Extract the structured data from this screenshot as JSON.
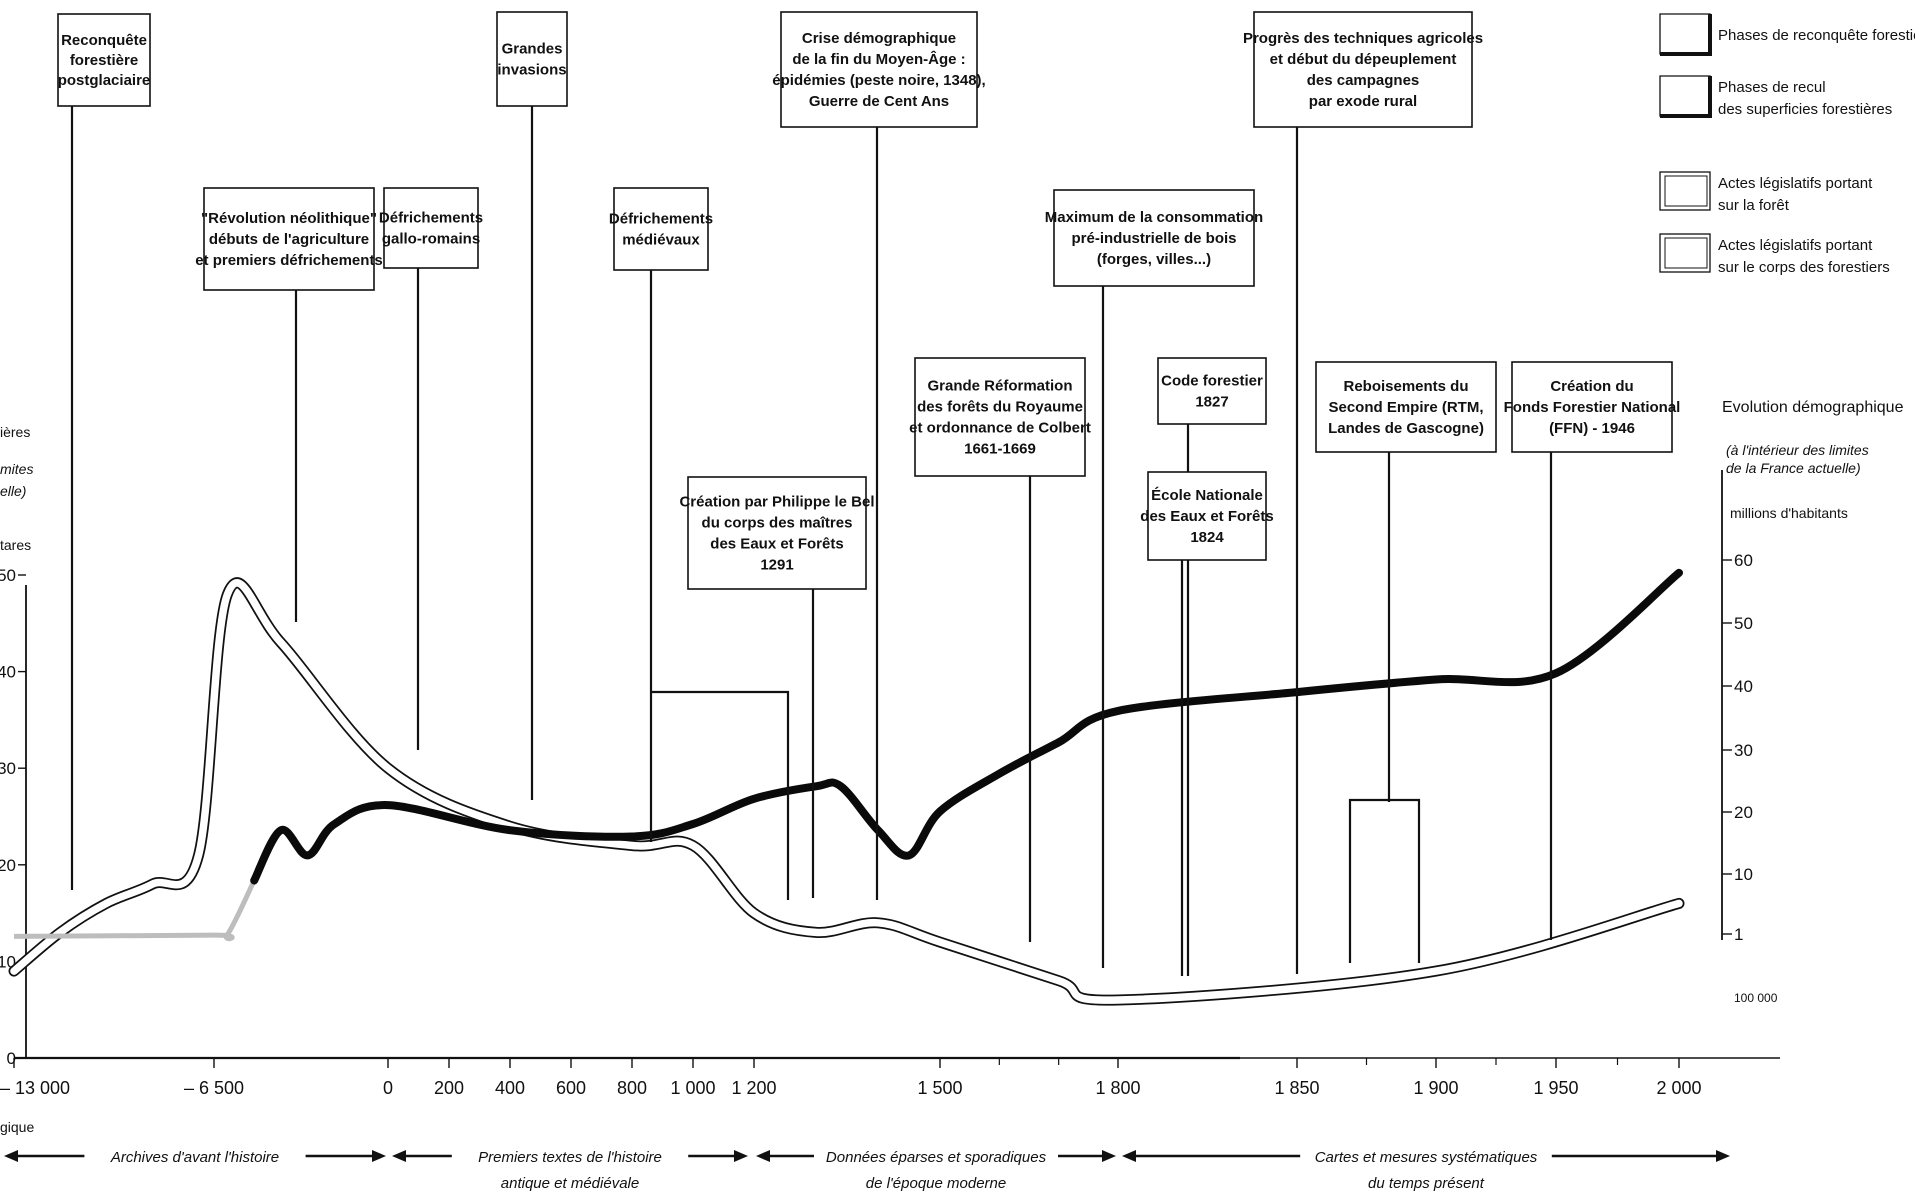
{
  "chart_data": {
    "type": "line",
    "x_ticks": [
      "– 13 000",
      "– 6 500",
      "0",
      "200",
      "400",
      "600",
      "800",
      "1 000",
      "1 200",
      "1 500",
      "1 800",
      "1 850",
      "1 900",
      "1 950",
      "2 000"
    ],
    "y_left_ticks": [
      "0",
      "10",
      "20",
      "30",
      "40",
      "50"
    ],
    "y_right_ticks": [
      "100 000",
      "1",
      "10",
      "20",
      "30",
      "40",
      "50",
      "60"
    ],
    "left_axis_label_fragments": [
      "ières",
      "mites",
      "elle)",
      "tares"
    ],
    "right_axis_title": "Evolution démographique",
    "right_axis_subtitle": "(à l'intérieur des limites de la France actuelle)",
    "right_axis_unit": "millions d'habitants",
    "x_label_fragment": "gique",
    "legend": [
      {
        "label": "Phases de reconquête forestière",
        "style": "heavy-outline"
      },
      {
        "label": "Phases de recul des superficies forestières",
        "style": "heavy-outline"
      },
      {
        "label": "Actes législatifs portant sur la forêt",
        "style": "double-outline"
      },
      {
        "label": "Actes législatifs portant sur le corps des forestiers",
        "style": "double-outline"
      }
    ],
    "events": [
      {
        "text": "Reconquête forestière postglaciaire",
        "lines": [
          "Reconquête",
          "forestière",
          "postglaciaire"
        ]
      },
      {
        "text": "\"Révolution néolithique\" débuts de l'agriculture et premiers défrichements",
        "lines": [
          "\"Révolution néolithique\"",
          "débuts de l'agriculture",
          "et premiers défrichements"
        ]
      },
      {
        "text": "Défrichements gallo-romains",
        "lines": [
          "Défrichements",
          "gallo-romains"
        ]
      },
      {
        "text": "Grandes invasions",
        "lines": [
          "Grandes",
          "invasions"
        ]
      },
      {
        "text": "Défrichements médiévaux",
        "lines": [
          "Défrichements",
          "médiévaux"
        ]
      },
      {
        "text": "Crise démographique de la fin du Moyen-Âge : épidémies (peste noire, 1348), Guerre de Cent Ans",
        "lines": [
          "Crise démographique",
          "de la fin du Moyen-Âge :",
          "épidémies (peste noire, 1348),",
          "Guerre de Cent Ans"
        ]
      },
      {
        "text": "Création par Philippe le Bel du corps des maîtres des Eaux et Forêts 1291",
        "lines": [
          "Création par Philippe le Bel",
          "du corps des maîtres",
          "des Eaux et Forêts",
          "1291"
        ]
      },
      {
        "text": "Grande Réformation des forêts du Royaume et ordonnance de Colbert 1661-1669",
        "lines": [
          "Grande Réformation",
          "des forêts du Royaume",
          "et ordonnance de Colbert",
          "1661-1669"
        ]
      },
      {
        "text": "Maximum de la consommation pré-industrielle de bois (forges, villes...)",
        "lines": [
          "Maximum de la consommation",
          "pré-industrielle de bois",
          "(forges, villes...)"
        ]
      },
      {
        "text": "Code forestier 1827",
        "lines": [
          "Code forestier",
          "1827"
        ]
      },
      {
        "text": "École Nationale des Eaux et Forêts 1824",
        "lines": [
          "École Nationale",
          "des Eaux et Forêts",
          "1824"
        ]
      },
      {
        "text": "Progrès des techniques agricoles et début du dépeuplement des campagnes par exode rural",
        "lines": [
          "Progrès des techniques agricoles",
          "et début du dépeuplement",
          "des campagnes",
          "par exode rural"
        ]
      },
      {
        "text": "Reboisements du Second Empire (RTM, Landes de Gascogne)",
        "lines": [
          "Reboisements du",
          "Second Empire (RTM,",
          "Landes de Gascogne)"
        ]
      },
      {
        "text": "Création du Fonds Forestier National (FFN) - 1946",
        "lines": [
          "Création du",
          "Fonds Forestier National",
          "(FFN) - 1946"
        ]
      }
    ],
    "periods": [
      {
        "lines": [
          "Archives d'avant l'histoire"
        ]
      },
      {
        "lines": [
          "Premiers textes de l'histoire",
          "antique et médiévale"
        ]
      },
      {
        "lines": [
          "Données éparses et sporadiques",
          "de l'époque moderne"
        ]
      },
      {
        "lines": [
          "Cartes et mesures systématiques",
          "du temps présent"
        ]
      }
    ],
    "series": [
      {
        "unit": "millions d'hectares",
        "x": [
          "-13000",
          "-11500",
          "-10000",
          "-8500",
          "-7000",
          "-6000",
          "-4000",
          "0",
          "400",
          "800",
          "1000",
          "1200",
          "1300",
          "1400",
          "1500",
          "1700",
          "1800",
          "1900",
          "2000"
        ],
        "values": [
          9,
          13,
          16,
          18,
          21,
          48,
          43,
          30,
          24,
          22,
          22,
          15,
          13,
          14,
          12,
          8,
          6,
          9,
          16
        ]
      },
      {
        "unit": "millions d'habitants",
        "x": [
          "-13000",
          "-6500",
          "-6000",
          "-5000",
          "-4000",
          "-3000",
          "-2000",
          "0",
          "400",
          "800",
          "1000",
          "1200",
          "1300",
          "1340",
          "1400",
          "1450",
          "1500",
          "1600",
          "1700",
          "1800",
          "1850",
          "1900",
          "1950",
          "2000"
        ],
        "values": [
          0.1,
          0.3,
          0.4,
          9,
          17,
          13,
          18,
          21,
          17,
          16,
          18,
          22,
          24,
          24,
          17,
          13,
          20,
          26,
          31,
          36,
          39,
          41,
          42,
          58
        ]
      }
    ]
  }
}
